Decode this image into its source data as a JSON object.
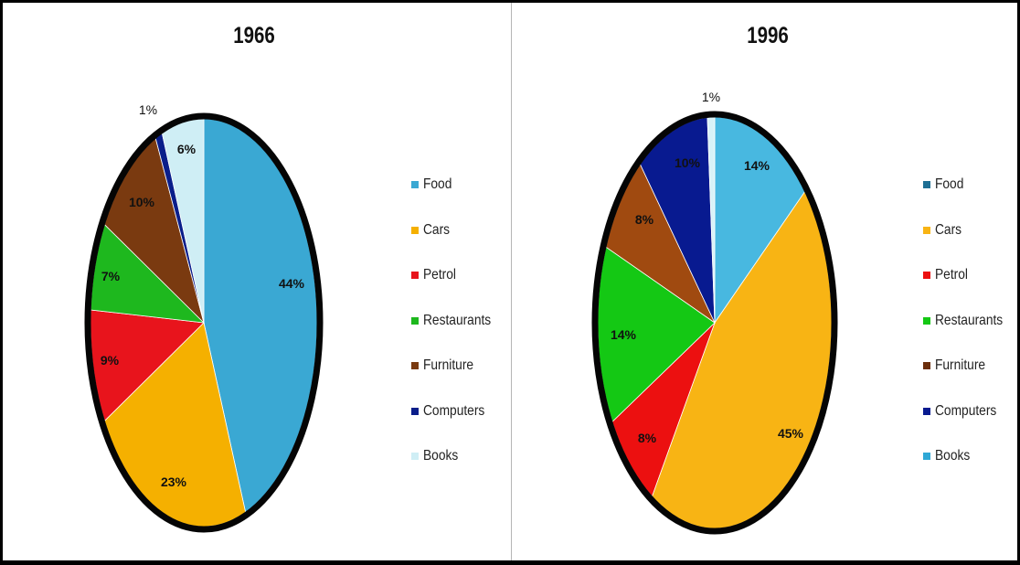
{
  "chart_data": [
    {
      "type": "pie",
      "title": "1966",
      "categories": [
        "Food",
        "Cars",
        "Petrol",
        "Restaurants",
        "Furniture",
        "Computers",
        "Books"
      ],
      "values": [
        44,
        23,
        9,
        7,
        10,
        1,
        6
      ],
      "labels": [
        "44%",
        "23%",
        "9%",
        "7%",
        "10%",
        "1%",
        "6%"
      ],
      "colors": [
        "#3aa8d3",
        "#f5b000",
        "#e8141c",
        "#1eb81e",
        "#7a3a10",
        "#0a1e8a",
        "#cfeef5"
      ],
      "legend_position": "right"
    },
    {
      "type": "pie",
      "title": "1996",
      "categories": [
        "Food",
        "Cars",
        "Petrol",
        "Restaurants",
        "Furniture",
        "Computers",
        "Books"
      ],
      "values": [
        14,
        45,
        8,
        14,
        8,
        10,
        1
      ],
      "labels": [
        "14%",
        "45%",
        "8%",
        "14%",
        "8%",
        "10%",
        "1%"
      ],
      "colors": [
        "#48b8e0",
        "#f8b414",
        "#ec1010",
        "#14c814",
        "#a04a10",
        "#081a90",
        "#d8f2f8"
      ],
      "legend_colors": [
        "#1e6f94",
        "#f8b414",
        "#ec1010",
        "#14c814",
        "#6b2e0c",
        "#081a90",
        "#2fa8d6"
      ],
      "legend_position": "right"
    }
  ]
}
